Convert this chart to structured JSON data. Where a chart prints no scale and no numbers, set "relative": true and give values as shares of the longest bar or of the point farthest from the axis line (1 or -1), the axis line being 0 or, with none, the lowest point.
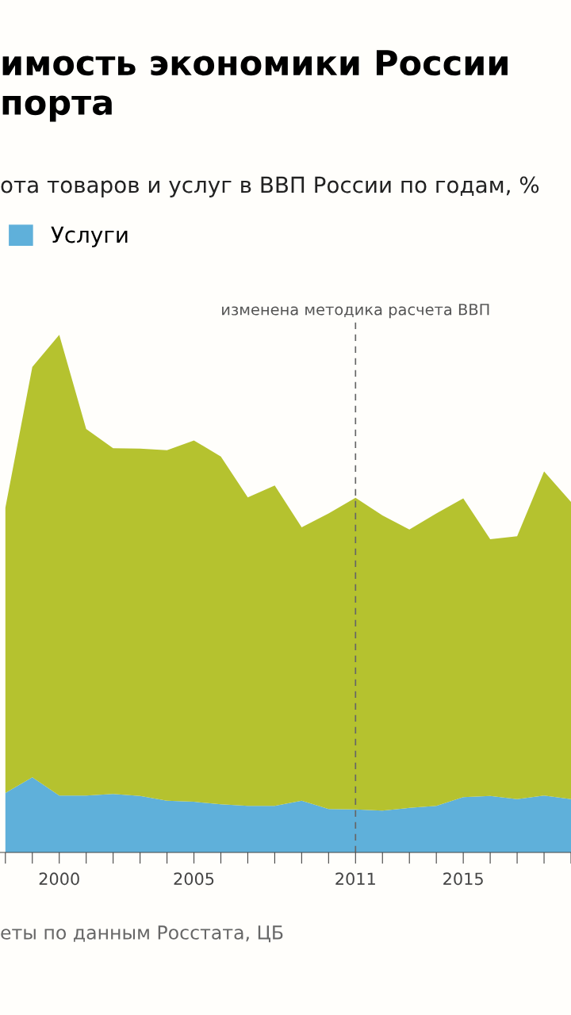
{
  "chart_data": {
    "type": "area",
    "stacked": true,
    "relative": true,
    "title": "имость экономики России\nпорта",
    "subtitle": "ота товаров и услуг в ВВП России по годам, %",
    "x": [
      1998,
      1999,
      2000,
      2001,
      2002,
      2003,
      2004,
      2005,
      2006,
      2007,
      2008,
      2009,
      2010,
      2011,
      2012,
      2013,
      2014,
      2015,
      2016,
      2017,
      2018,
      2019
    ],
    "xlim": [
      1997.8,
      2019
    ],
    "xticks": [
      {
        "value": 1998,
        "label": null
      },
      {
        "value": 1999,
        "label": null
      },
      2000,
      {
        "value": 2001,
        "label": null
      },
      {
        "value": 2002,
        "label": null
      },
      {
        "value": 2003,
        "label": null
      },
      {
        "value": 2004,
        "label": null
      },
      2005,
      {
        "value": 2006,
        "label": null
      },
      {
        "value": 2007,
        "label": null
      },
      {
        "value": 2008,
        "label": null
      },
      {
        "value": 2009,
        "label": null
      },
      {
        "value": 2010,
        "label": null
      },
      2011,
      {
        "value": 2012,
        "label": null
      },
      {
        "value": 2013,
        "label": null
      },
      {
        "value": 2014,
        "label": null
      },
      2015,
      {
        "value": 2016,
        "label": null
      },
      {
        "value": 2017,
        "label": null
      },
      {
        "value": 2018,
        "label": null
      },
      {
        "value": 2019,
        "label": null
      }
    ],
    "tick_labels": "x",
    "series": [
      {
        "name": "Услуги",
        "color": "#5fb0da",
        "values": [
          0.115,
          0.145,
          0.11,
          0.11,
          0.113,
          0.109,
          0.1,
          0.098,
          0.093,
          0.09,
          0.09,
          0.1,
          0.084,
          0.083,
          0.081,
          0.086,
          0.09,
          0.107,
          0.109,
          0.103,
          0.11,
          0.103
        ]
      },
      {
        "color": "#b5c22f",
        "values": [
          0.551,
          0.793,
          0.89,
          0.708,
          0.668,
          0.671,
          0.677,
          0.698,
          0.672,
          0.596,
          0.619,
          0.528,
          0.571,
          0.602,
          0.57,
          0.538,
          0.565,
          0.577,
          0.496,
          0.508,
          0.626,
          0.574
        ]
      }
    ],
    "ref_lines": [
      {
        "axis": "x",
        "value": 2011,
        "label": "изменена методика расчета ВВП",
        "color": "#666666",
        "line_style": "dashed"
      }
    ],
    "legend": "top left",
    "annotations": [
      "еты по данным Росстата, ЦБ"
    ]
  }
}
